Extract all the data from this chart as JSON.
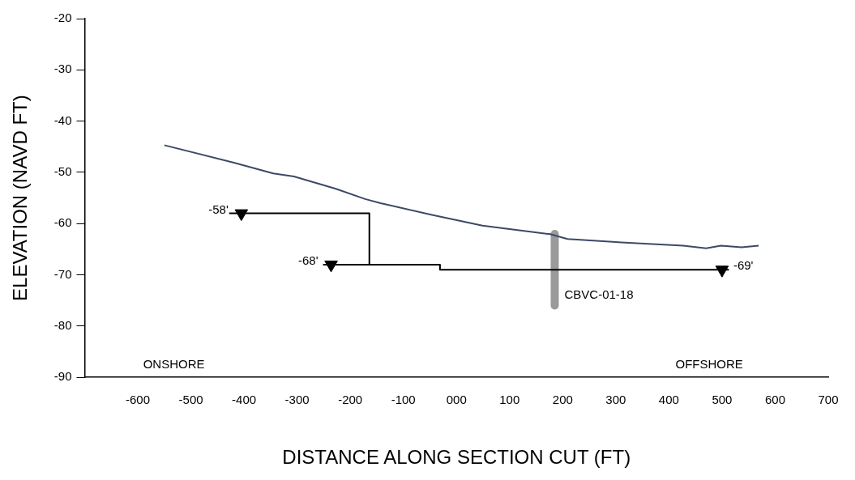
{
  "chart_data": {
    "type": "line",
    "xlabel": "DISTANCE ALONG SECTION CUT (FT)",
    "ylabel": "ELEVATION (NAVD FT)",
    "xlim": [
      -700,
      700
    ],
    "xticks": [
      -600,
      -500,
      -400,
      -300,
      -200,
      -100,
      {
        "value": 0,
        "label": "000"
      },
      100,
      200,
      300,
      400,
      500,
      600,
      700
    ],
    "ylim": [
      -90,
      -20
    ],
    "yticks": [
      -90,
      -80,
      -70,
      -60,
      -50,
      -40,
      -30,
      -20
    ],
    "grid": false,
    "legend": false,
    "marker": "none",
    "line_style": "solid",
    "series": [
      {
        "color": "#3c4a66",
        "x": [
          -550,
          -416,
          -345,
          -306,
          -227,
          -172,
          -143,
          -46,
          49,
          172,
          175,
          209,
          300,
          427,
          470,
          498,
          537,
          569
        ],
        "values": [
          -44.7,
          -48.2,
          -50.2,
          -50.8,
          -53.2,
          -55.2,
          -56,
          -58.3,
          -60.4,
          -62,
          -62,
          -63,
          -63.6,
          -64.3,
          -64.8,
          -64.3,
          -64.6,
          -64.3
        ]
      },
      {
        "color": "#000000",
        "x": [
          -428,
          -164,
          -164,
          -250,
          -164,
          -31,
          -31,
          513
        ],
        "values": [
          -58,
          -58,
          -68,
          -68,
          -68,
          -68,
          -69,
          -69
        ]
      },
      {
        "color": "#9a9a9a",
        "x": [
          185,
          185
        ],
        "values": [
          -62,
          -76
        ]
      },
      {
        "type": "scatter",
        "marker": "triangle",
        "color": "#000000",
        "x": [
          -405,
          -236,
          500
        ],
        "values": [
          -58,
          -68,
          -69
        ]
      }
    ],
    "annotations": [
      {
        "text": "-58'",
        "x": -405,
        "y": -58
      },
      {
        "text": "-68'",
        "x": -236,
        "y": -68
      },
      {
        "text": "-69'",
        "x": 500,
        "y": -69
      },
      {
        "text": "CBVC-01-18",
        "x": 185,
        "y": -74
      },
      "ONSHORE",
      "OFFSHORE"
    ]
  }
}
